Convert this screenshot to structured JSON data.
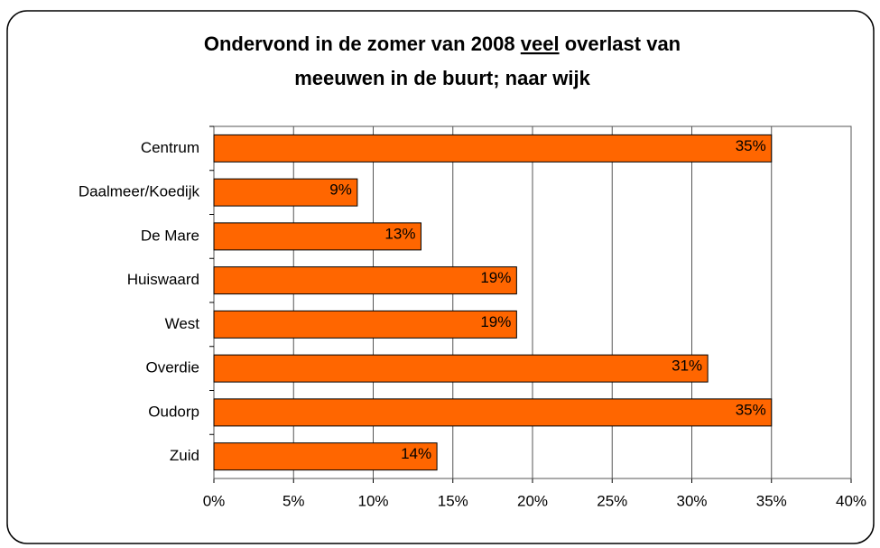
{
  "chart_data": {
    "type": "barh",
    "title": [
      "Ondervond in de zomer van 2008",
      "veel",
      "overlast van",
      "meeuwen in de buurt; naar wijk"
    ],
    "categories": [
      "Centrum",
      "Daalmeer/Koedijk",
      "De Mare",
      "Huiswaard",
      "West",
      "Overdie",
      "Oudorp",
      "Zuid"
    ],
    "values": [
      35,
      9,
      13,
      19,
      19,
      31,
      35,
      14
    ],
    "value_labels": [
      "35%",
      "9%",
      "13%",
      "19%",
      "19%",
      "31%",
      "35%",
      "14%"
    ],
    "color": "#ff6600",
    "xlim": [
      0,
      40
    ],
    "xticks": [
      {
        "value": 0,
        "label": "0%"
      },
      {
        "value": 5,
        "label": "5%"
      },
      {
        "value": 10,
        "label": "10%"
      },
      {
        "value": 15,
        "label": "15%"
      },
      {
        "value": 20,
        "label": "20%"
      },
      {
        "value": 25,
        "label": "25%"
      },
      {
        "value": 30,
        "label": "30%"
      },
      {
        "value": 35,
        "label": "35%"
      },
      {
        "value": 40,
        "label": "40%"
      }
    ],
    "grid": true
  }
}
